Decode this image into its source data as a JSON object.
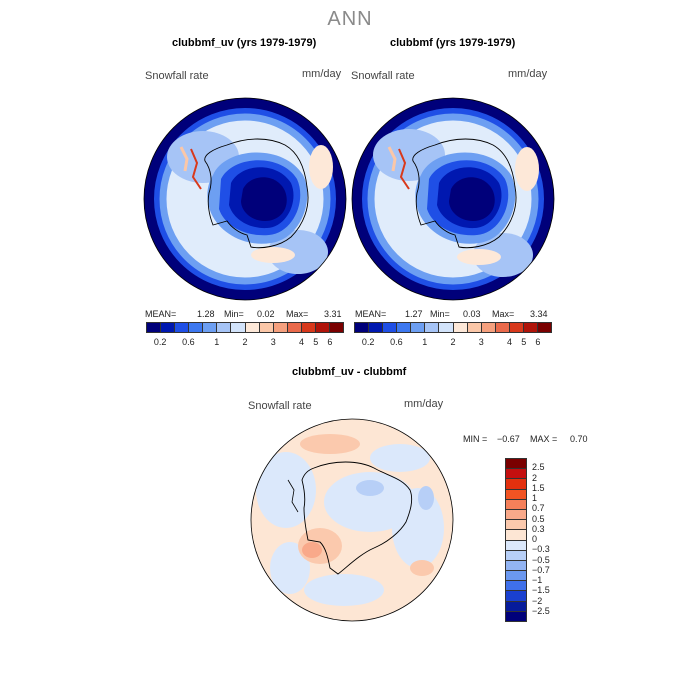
{
  "season": "ANN",
  "panels": {
    "left": {
      "title": "clubbmf_uv (yrs 1979-1979)",
      "field": "Snowfall rate",
      "units": "mm/day",
      "mean_label": "MEAN=",
      "mean": "1.28",
      "min_label": "Min=",
      "min": "0.02",
      "max_label": "Max=",
      "max": "3.31"
    },
    "right": {
      "title": "clubbmf (yrs 1979-1979)",
      "field": "Snowfall rate",
      "units": "mm/day",
      "mean_label": "MEAN=",
      "mean": "1.27",
      "min_label": "Min=",
      "min": "0.03",
      "max_label": "Max=",
      "max": "3.34"
    },
    "diff": {
      "title": "clubbmf_uv - clubbmf",
      "field": "Snowfall rate",
      "units": "mm/day",
      "min_label": "MIN =",
      "min": "−0.67",
      "max_label": "MAX =",
      "max": "0.70"
    }
  },
  "colorbar_main": {
    "colors": [
      "#00007a",
      "#0018b0",
      "#1f4fe6",
      "#3d78f0",
      "#6d9ff2",
      "#a6c4f6",
      "#d2e3fa",
      "#fde8d8",
      "#fbc7a8",
      "#f5a07e",
      "#ea6a4b",
      "#d8391c",
      "#b0140a",
      "#7a0000"
    ],
    "labels": [
      "0.2",
      "0.6",
      "1",
      "2",
      "3",
      "4",
      "5",
      "6"
    ]
  },
  "colorbar_diff": {
    "colors": [
      "#7a0000",
      "#c40f0f",
      "#e3300e",
      "#f25423",
      "#f5805a",
      "#f9a98a",
      "#fbc9ad",
      "#fde6d4",
      "#dbe8fb",
      "#b7cff7",
      "#92b4f3",
      "#6b98f0",
      "#3f70ea",
      "#1a40cf",
      "#061b9b",
      "#00007a"
    ],
    "labels": [
      "2.5",
      "2",
      "1.5",
      "1",
      "0.7",
      "0.5",
      "0.3",
      "0",
      "−0.3",
      "−0.5",
      "−0.7",
      "−1",
      "−1.5",
      "−2",
      "−2.5"
    ]
  }
}
